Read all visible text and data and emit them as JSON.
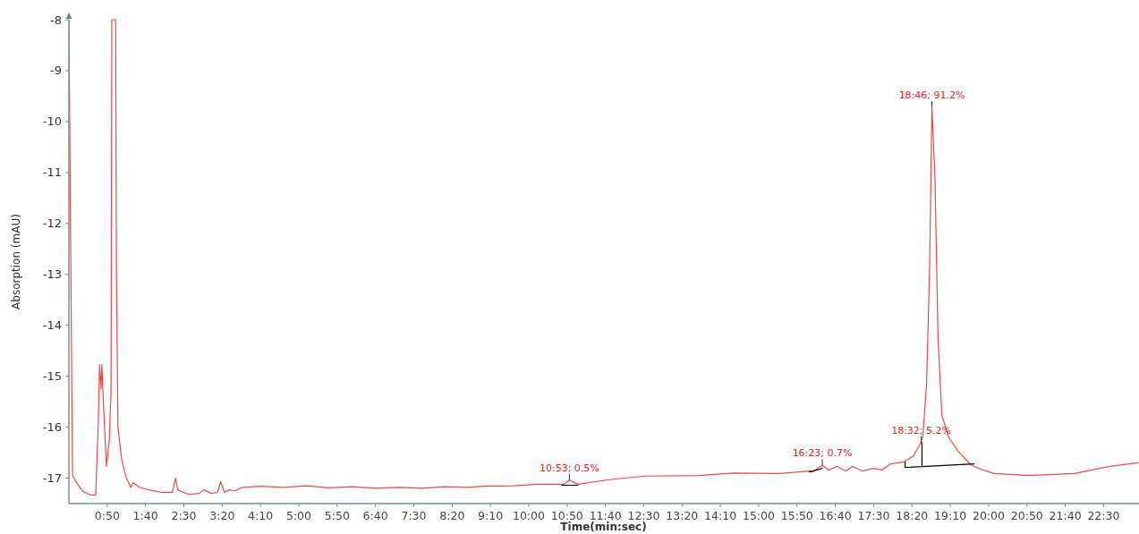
{
  "chart_data": {
    "type": "line",
    "xlabel": "Time(min:sec)",
    "ylabel": "Absorption (mAU)",
    "xlim": [
      0,
      1395
    ],
    "ylim": [
      -17.5,
      -8
    ],
    "yticks": [
      -8,
      -9,
      -10,
      -11,
      -12,
      -13,
      -14,
      -15,
      -16,
      -17
    ],
    "xticks": [
      {
        "value": 50,
        "label": "0:50"
      },
      {
        "value": 100,
        "label": "1:40"
      },
      {
        "value": 150,
        "label": "2:30"
      },
      {
        "value": 200,
        "label": "3:20"
      },
      {
        "value": 250,
        "label": "4:10"
      },
      {
        "value": 300,
        "label": "5:00"
      },
      {
        "value": 350,
        "label": "5:50"
      },
      {
        "value": 400,
        "label": "6:40"
      },
      {
        "value": 450,
        "label": "7:30"
      },
      {
        "value": 500,
        "label": "8:20"
      },
      {
        "value": 550,
        "label": "9:10"
      },
      {
        "value": 600,
        "label": "10:00"
      },
      {
        "value": 650,
        "label": "10:50"
      },
      {
        "value": 700,
        "label": "11:40"
      },
      {
        "value": 750,
        "label": "12:30"
      },
      {
        "value": 800,
        "label": "13:20"
      },
      {
        "value": 850,
        "label": "14:10"
      },
      {
        "value": 900,
        "label": "15:00"
      },
      {
        "value": 950,
        "label": "15:50"
      },
      {
        "value": 1000,
        "label": "16:40"
      },
      {
        "value": 1050,
        "label": "17:30"
      },
      {
        "value": 1100,
        "label": "18:20"
      },
      {
        "value": 1150,
        "label": "19:10"
      },
      {
        "value": 1200,
        "label": "20:00"
      },
      {
        "value": 1250,
        "label": "20:50"
      },
      {
        "value": 1300,
        "label": "21:40"
      },
      {
        "value": 1350,
        "label": "22:30"
      }
    ],
    "grid": false,
    "marker": "none",
    "line_style": "solid",
    "series": [
      {
        "color": "#f04848",
        "x": [
          0,
          4.7,
          10,
          18,
          28,
          35,
          38.5,
          40,
          42,
          43,
          45.5,
          49,
          52.5,
          55,
          56,
          61,
          62,
          64,
          69,
          75,
          80.5,
          84,
          92,
          104,
          121,
          135,
          139,
          142,
          156,
          170,
          176,
          185.5,
          194,
          198,
          203,
          209,
          217,
          226,
          250,
          280,
          310,
          340,
          370,
          400,
          430,
          460,
          490,
          520,
          541,
          580,
          611,
          646,
          653,
          664,
          705,
          751,
          821,
          868,
          927,
          967,
          970,
          983,
          991,
          1002,
          1014,
          1022,
          1035,
          1049,
          1061,
          1072,
          1090,
          1102,
          1110,
          1114,
          1119,
          1123,
          1126,
          1130,
          1134,
          1139,
          1148,
          1160,
          1177,
          1189,
          1207,
          1253,
          1312,
          1358,
          1395
        ],
        "values": [
          -8,
          -16.95,
          -17.09,
          -17.26,
          -17.33,
          -17.33,
          -15.86,
          -14.77,
          -15.25,
          -14.77,
          -15.68,
          -16.77,
          -16.3,
          -15.3,
          -8,
          -8,
          -12.9,
          -16.0,
          -16.65,
          -17.0,
          -17.18,
          -17.09,
          -17.18,
          -17.23,
          -17.28,
          -17.28,
          -17.0,
          -17.23,
          -17.32,
          -17.3,
          -17.23,
          -17.3,
          -17.28,
          -17.07,
          -17.28,
          -17.23,
          -17.25,
          -17.18,
          -17.16,
          -17.18,
          -17.15,
          -17.19,
          -17.17,
          -17.2,
          -17.18,
          -17.2,
          -17.17,
          -17.18,
          -17.16,
          -17.15,
          -17.12,
          -17.12,
          -17.04,
          -17.12,
          -17.03,
          -16.96,
          -16.95,
          -16.9,
          -16.91,
          -16.86,
          -16.88,
          -16.75,
          -16.84,
          -16.77,
          -16.86,
          -16.77,
          -16.86,
          -16.81,
          -16.84,
          -16.72,
          -16.68,
          -16.56,
          -16.35,
          -16.2,
          -15.16,
          -12.86,
          -9.72,
          -11.12,
          -14.28,
          -15.77,
          -16.2,
          -16.47,
          -16.74,
          -16.82,
          -16.91,
          -16.95,
          -16.91,
          -16.77,
          -16.7
        ]
      },
      {
        "color": "#000000",
        "x": [
          643,
          664,
          null,
          966,
          983,
          null,
          1091,
          1091,
          1181,
          null,
          1113,
          1113
        ],
        "values": [
          -17.14,
          -17.14,
          null,
          -16.88,
          -16.81,
          null,
          -16.68,
          -16.79,
          -16.72,
          null,
          -16.77,
          -16.3
        ]
      }
    ],
    "annotations": [
      {
        "text": "10:53; 0.5%",
        "x": 653,
        "y": -17.04
      },
      {
        "text": "16:23; 0.7%",
        "x": 983,
        "y": -16.75
      },
      {
        "text": "18:32; 5.2%",
        "x": 1112,
        "y": -16.3
      },
      {
        "text": "18:46; 91.2%",
        "x": 1126,
        "y": -9.72
      }
    ]
  }
}
